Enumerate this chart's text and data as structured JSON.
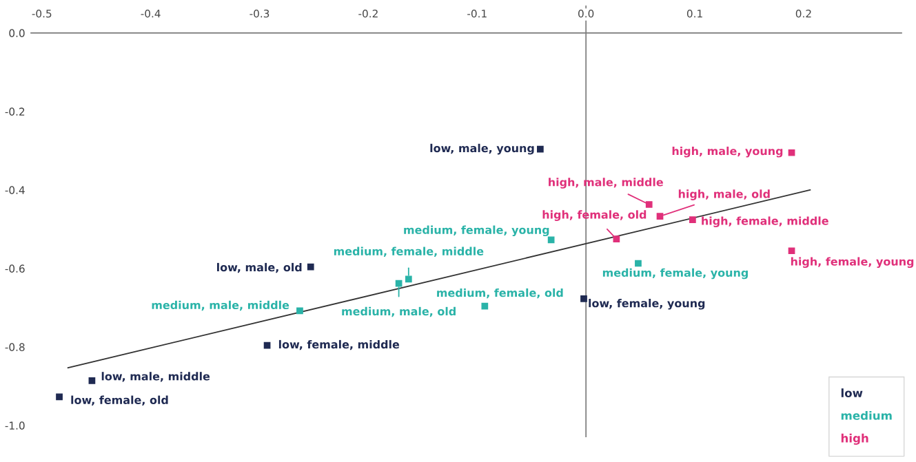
{
  "chart_data": {
    "type": "scatter",
    "xlim": [
      -0.51,
      0.29
    ],
    "ylim": [
      -1.03,
      0.07
    ],
    "xticks": [
      -0.5,
      -0.4,
      -0.3,
      -0.2,
      -0.1,
      {
        "value": 0.0,
        "label": "0.0"
      },
      0.1,
      0.2
    ],
    "yticks": [
      {
        "value": 0.0,
        "label": "0.0"
      },
      -0.2,
      -0.4,
      -0.6,
      -0.8,
      {
        "value": -1.0,
        "label": "-1.0"
      }
    ],
    "ref_lines": [
      {
        "axis": "x",
        "value": 0.0,
        "color": "#7a7a7a"
      }
    ],
    "grid": false,
    "marker": "square",
    "legend": "bottom right",
    "series": [
      {
        "name": "low",
        "color": "#1f2a52",
        "x": [
          -0.042,
          -0.253,
          -0.293,
          -0.454,
          -0.484,
          -0.002
        ],
        "values": [
          -0.296,
          -0.596,
          -0.796,
          -0.886,
          -0.927,
          -0.677
        ]
      },
      {
        "name": "medium",
        "color": "#2ab3a8",
        "x": [
          -0.032,
          -0.163,
          -0.172,
          -0.263,
          -0.093,
          0.048
        ],
        "values": [
          -0.527,
          -0.627,
          -0.638,
          -0.708,
          -0.696,
          -0.587
        ]
      },
      {
        "name": "high",
        "color": "#e0307a",
        "x": [
          0.189,
          0.058,
          0.068,
          0.028,
          0.098,
          0.189
        ],
        "values": [
          -0.305,
          -0.437,
          -0.467,
          -0.525,
          -0.476,
          -0.555
        ]
      },
      {
        "type": "line",
        "marker": "none",
        "color": "#333333",
        "x": [
          -0.476,
          0.206
        ],
        "values": [
          -0.853,
          -0.4
        ]
      }
    ],
    "annotations": [
      {
        "text": "low, male, young",
        "x": -0.042,
        "y": -0.296
      },
      {
        "text": "low, male, old",
        "x": -0.253,
        "y": -0.596
      },
      {
        "text": "low, female, middle",
        "x": -0.293,
        "y": -0.796
      },
      {
        "text": "low, male, middle",
        "x": -0.454,
        "y": -0.886
      },
      {
        "text": "low, female, old",
        "x": -0.484,
        "y": -0.927
      },
      {
        "text": "low, female, young",
        "x": -0.002,
        "y": -0.677
      },
      {
        "text": "medium, female, young",
        "x": -0.032,
        "y": -0.527
      },
      {
        "text": "medium, female, middle",
        "x": -0.163,
        "y": -0.627
      },
      {
        "text": "medium, male, old",
        "x": -0.172,
        "y": -0.638
      },
      {
        "text": "medium, male, middle",
        "x": -0.263,
        "y": -0.708
      },
      {
        "text": "medium, female, old",
        "x": -0.093,
        "y": -0.696
      },
      {
        "text": "medium, female, young",
        "x": 0.048,
        "y": -0.587
      },
      {
        "text": "high, male, young",
        "x": 0.189,
        "y": -0.305
      },
      {
        "text": "high, male, middle",
        "x": 0.058,
        "y": -0.437
      },
      {
        "text": "high, male, old",
        "x": 0.068,
        "y": -0.467
      },
      {
        "text": "high, female, old",
        "x": 0.028,
        "y": -0.525
      },
      {
        "text": "high, female, middle",
        "x": 0.098,
        "y": -0.476
      },
      {
        "text": "high, female, young",
        "x": 0.189,
        "y": -0.555
      }
    ]
  }
}
